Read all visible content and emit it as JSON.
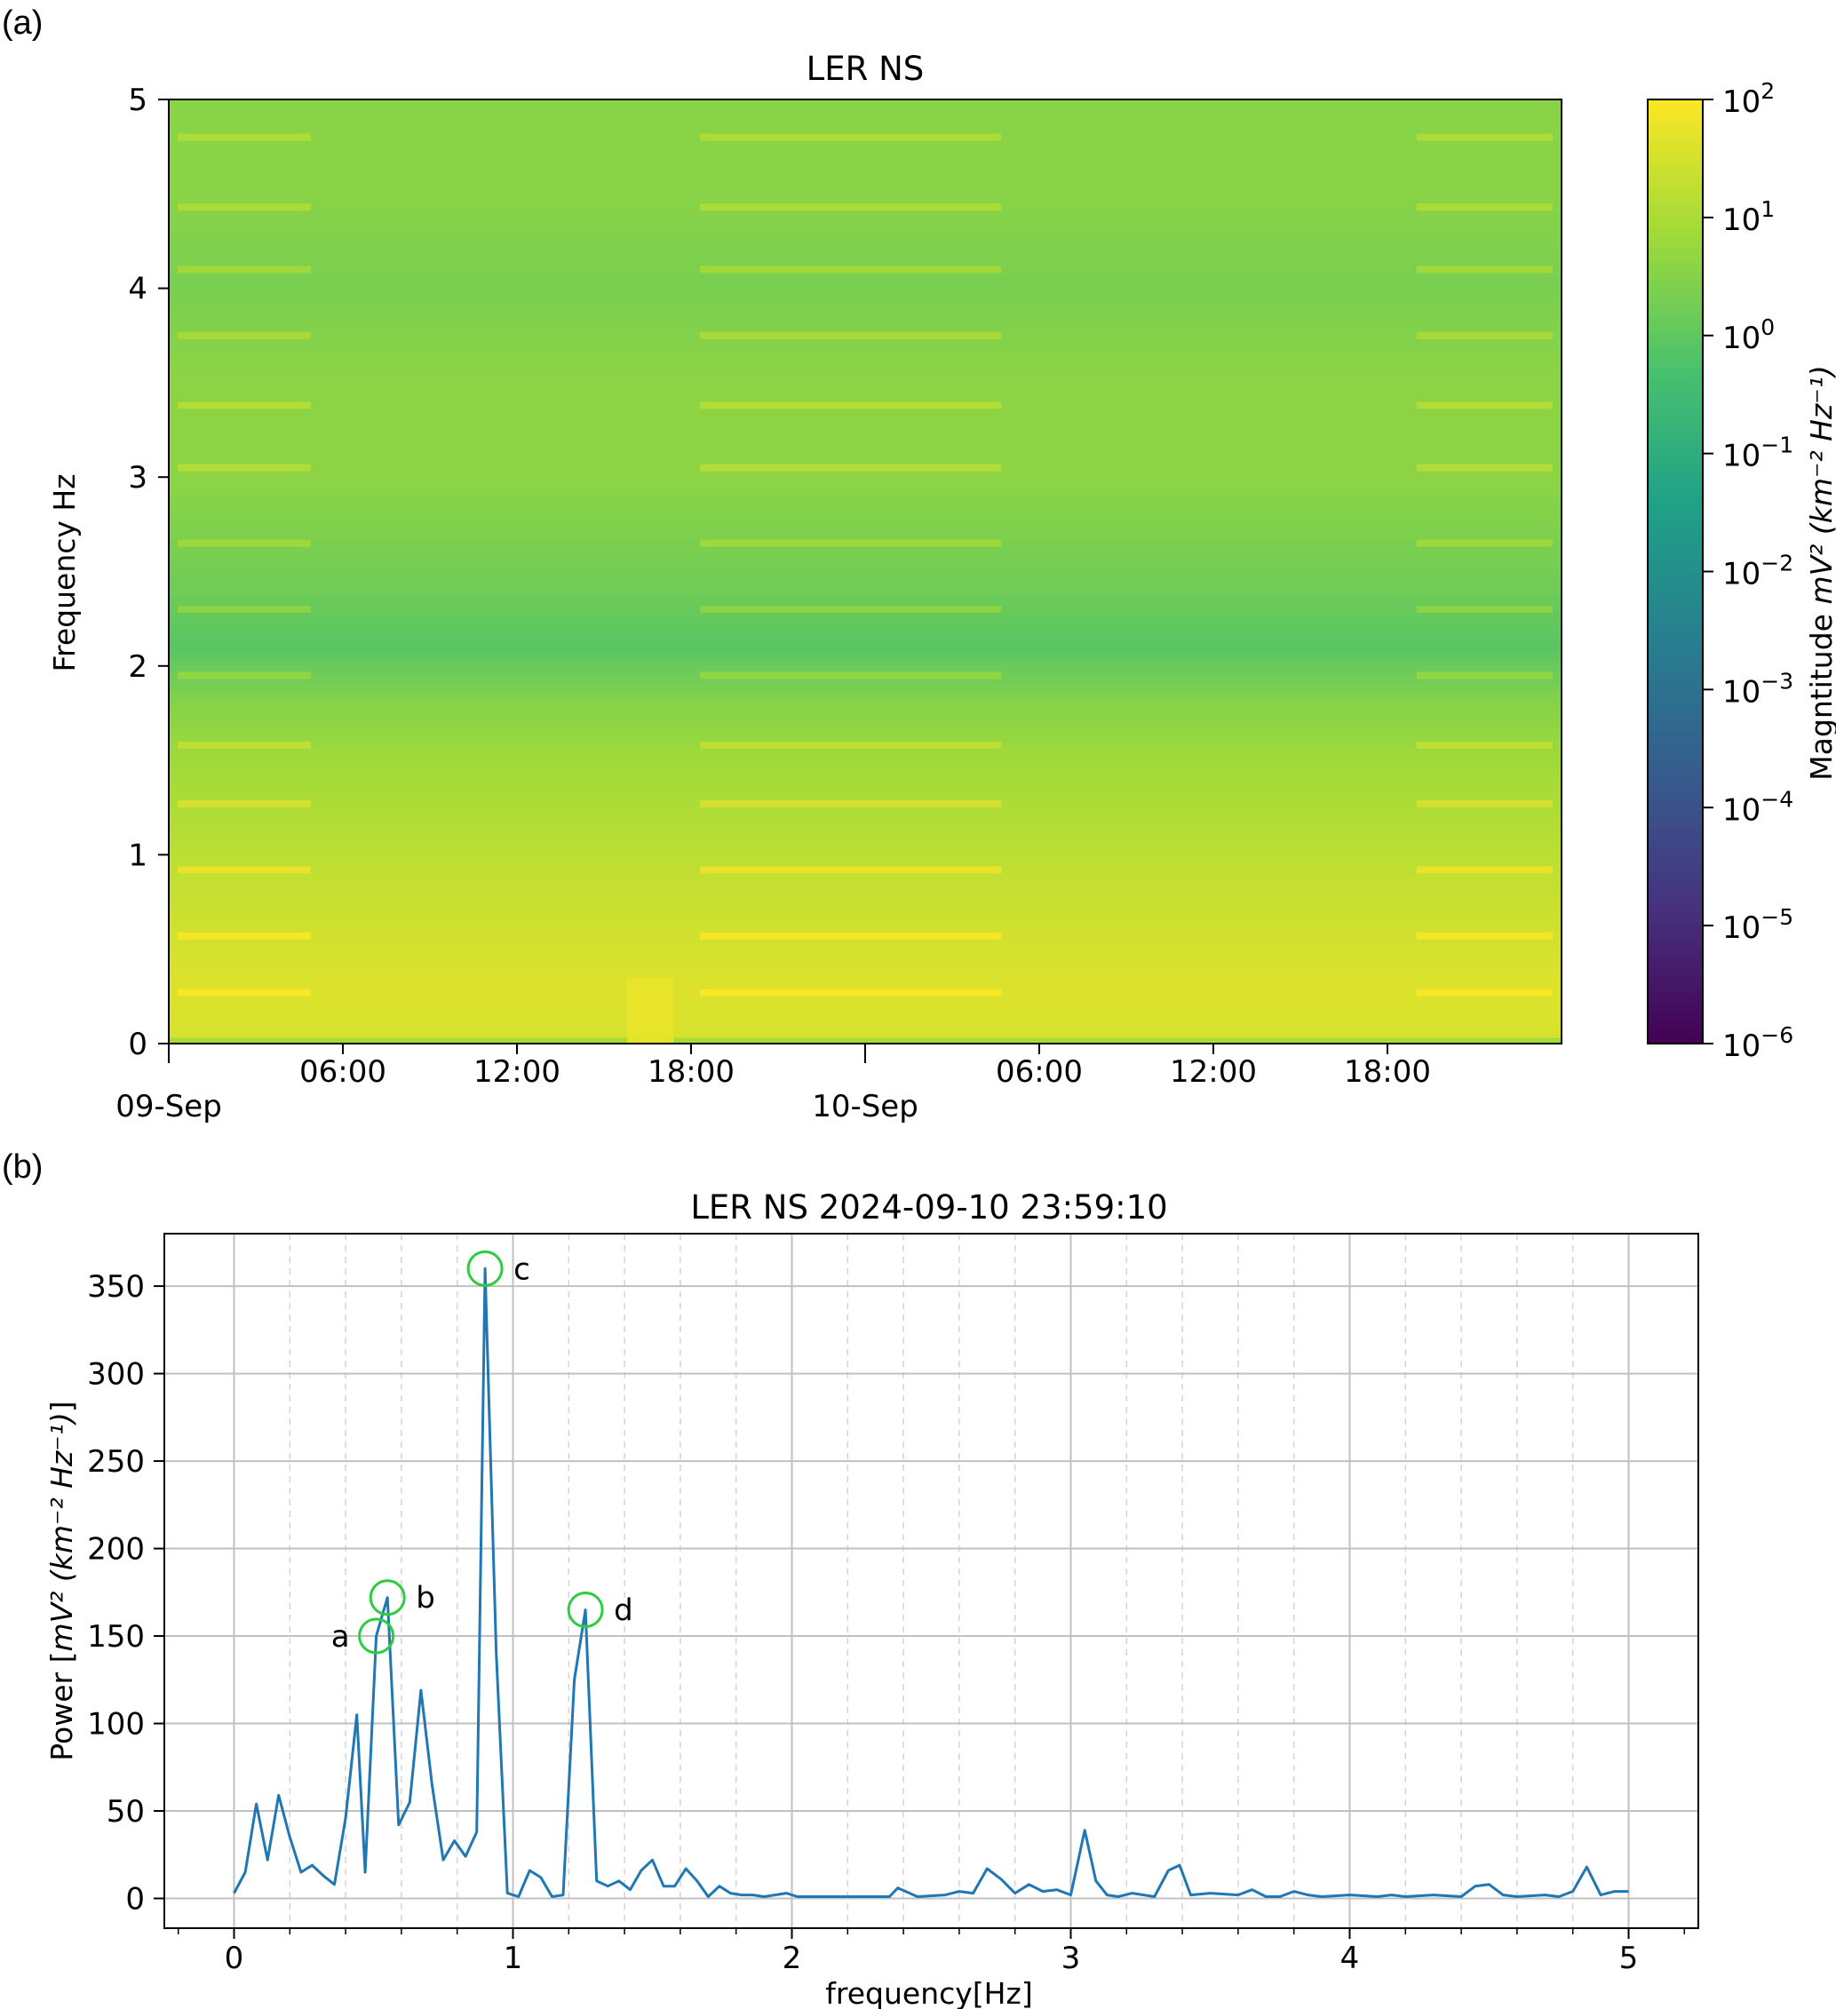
{
  "chart_data": [
    {
      "panel_label": "(a)",
      "type": "heatmap",
      "title": "LER NS",
      "ylabel": "Frequency Hz",
      "ylim": [
        0,
        5
      ],
      "yticks": [
        "0",
        "1",
        "2",
        "3",
        "4",
        "5"
      ],
      "x_range_hours": [
        0,
        48
      ],
      "xticks": [
        {
          "hour": 0,
          "label": "09-Sep",
          "major": true
        },
        {
          "hour": 6,
          "label": "06:00",
          "major": false
        },
        {
          "hour": 12,
          "label": "12:00",
          "major": false
        },
        {
          "hour": 18,
          "label": "18:00",
          "major": false
        },
        {
          "hour": 24,
          "label": "10-Sep",
          "major": true
        },
        {
          "hour": 30,
          "label": "06:00",
          "major": false
        },
        {
          "hour": 36,
          "label": "12:00",
          "major": false
        },
        {
          "hour": 42,
          "label": "18:00",
          "major": false
        }
      ],
      "colormap": "viridis",
      "colorbar": {
        "label_prefix": "Magntitude",
        "label_unit": "mV² (km⁻² Hz⁻¹)",
        "scale": "log",
        "range_exponents": [
          -6,
          2
        ],
        "ticks": [
          {
            "base": "10",
            "exp": "2"
          },
          {
            "base": "10",
            "exp": "1"
          },
          {
            "base": "10",
            "exp": "0"
          },
          {
            "base": "10",
            "exp": "−1"
          },
          {
            "base": "10",
            "exp": "−2"
          },
          {
            "base": "10",
            "exp": "−3"
          },
          {
            "base": "10",
            "exp": "−4"
          },
          {
            "base": "10",
            "exp": "−5"
          },
          {
            "base": "10",
            "exp": "−6"
          }
        ],
        "stops": [
          "#440154",
          "#46327e",
          "#365c8d",
          "#277f8e",
          "#1fa187",
          "#4ac16d",
          "#a0da39",
          "#fde725"
        ]
      },
      "value_profile_log10": [
        {
          "f": 0.0,
          "v": 0.6
        },
        {
          "f": 0.05,
          "v": 1.55
        },
        {
          "f": 0.3,
          "v": 1.6
        },
        {
          "f": 0.6,
          "v": 1.45
        },
        {
          "f": 1.0,
          "v": 1.2
        },
        {
          "f": 1.5,
          "v": 0.85
        },
        {
          "f": 1.8,
          "v": 0.5
        },
        {
          "f": 2.1,
          "v": -0.1
        },
        {
          "f": 2.4,
          "v": 0.2
        },
        {
          "f": 3.0,
          "v": 0.6
        },
        {
          "f": 3.5,
          "v": 0.6
        },
        {
          "f": 4.0,
          "v": 0.35
        },
        {
          "f": 4.5,
          "v": 0.55
        },
        {
          "f": 5.0,
          "v": 0.55
        }
      ],
      "line_interference_intervals_hours": [
        [
          0,
          5.2
        ],
        [
          18,
          29
        ],
        [
          42.7,
          48
        ]
      ],
      "line_frequencies_hz": [
        0.27,
        0.57,
        0.92,
        1.27,
        1.58,
        1.95,
        2.3,
        2.65,
        3.05,
        3.38,
        3.75,
        4.1,
        4.43,
        4.8
      ],
      "bright_event": {
        "hour_start": 15.8,
        "hour_end": 17.4,
        "f_max": 0.35
      }
    },
    {
      "panel_label": "(b)",
      "type": "line",
      "title": "LER NS 2024-09-10 23:59:10",
      "xlabel": "frequency[Hz]",
      "ylabel_prefix": "Power [",
      "ylabel_unit": "mV² (km⁻² Hz⁻¹)",
      "ylabel_suffix": "]",
      "xlim": [
        -0.25,
        5.25
      ],
      "ylim": [
        -17,
        380
      ],
      "xticks": [
        "0",
        "1",
        "2",
        "3",
        "4",
        "5"
      ],
      "yticks": [
        "0",
        "50",
        "100",
        "150",
        "200",
        "250",
        "300",
        "350"
      ],
      "grid": true,
      "series": [
        {
          "name": "power",
          "color": "#1f77b4",
          "x": [
            0.0,
            0.04,
            0.08,
            0.12,
            0.16,
            0.2,
            0.24,
            0.28,
            0.32,
            0.36,
            0.4,
            0.44,
            0.47,
            0.51,
            0.55,
            0.59,
            0.63,
            0.67,
            0.71,
            0.75,
            0.79,
            0.83,
            0.87,
            0.9,
            0.94,
            0.98,
            1.02,
            1.06,
            1.1,
            1.14,
            1.18,
            1.22,
            1.26,
            1.3,
            1.34,
            1.38,
            1.42,
            1.46,
            1.5,
            1.54,
            1.58,
            1.62,
            1.66,
            1.7,
            1.74,
            1.78,
            1.82,
            1.86,
            1.9,
            1.94,
            1.98,
            2.02,
            2.1,
            2.2,
            2.3,
            2.35,
            2.38,
            2.45,
            2.55,
            2.6,
            2.65,
            2.7,
            2.75,
            2.8,
            2.85,
            2.9,
            2.95,
            3.0,
            3.05,
            3.09,
            3.13,
            3.17,
            3.22,
            3.3,
            3.35,
            3.39,
            3.43,
            3.5,
            3.6,
            3.65,
            3.7,
            3.75,
            3.8,
            3.85,
            3.9,
            4.0,
            4.1,
            4.15,
            4.2,
            4.3,
            4.4,
            4.45,
            4.5,
            4.55,
            4.6,
            4.7,
            4.75,
            4.8,
            4.85,
            4.9,
            4.95,
            5.0
          ],
          "values": [
            3,
            15,
            54,
            22,
            59,
            35,
            15,
            19,
            13,
            8,
            46,
            105,
            15,
            150,
            172,
            42,
            55,
            119,
            65,
            22,
            33,
            24,
            38,
            360,
            140,
            3,
            1,
            16,
            12,
            1,
            2,
            125,
            165,
            10,
            7,
            10,
            5,
            16,
            22,
            7,
            7,
            17,
            10,
            1,
            7,
            3,
            2,
            2,
            1,
            2,
            3,
            1,
            1,
            1,
            1,
            1,
            6,
            1,
            2,
            4,
            3,
            17,
            11,
            3,
            8,
            4,
            5,
            2,
            39,
            10,
            2,
            1,
            3,
            1,
            16,
            19,
            2,
            3,
            2,
            5,
            1,
            1,
            4,
            2,
            1,
            2,
            1,
            2,
            1,
            2,
            1,
            7,
            8,
            2,
            1,
            2,
            1,
            4,
            18,
            2,
            4,
            4
          ]
        }
      ],
      "annotations": [
        {
          "label": "a",
          "x": 0.51,
          "y": 150,
          "color": "#2ecc40"
        },
        {
          "label": "b",
          "x": 0.55,
          "y": 172,
          "color": "#2ecc40"
        },
        {
          "label": "c",
          "x": 0.9,
          "y": 360,
          "color": "#2ecc40"
        },
        {
          "label": "d",
          "x": 1.26,
          "y": 165,
          "color": "#2ecc40"
        }
      ]
    }
  ]
}
